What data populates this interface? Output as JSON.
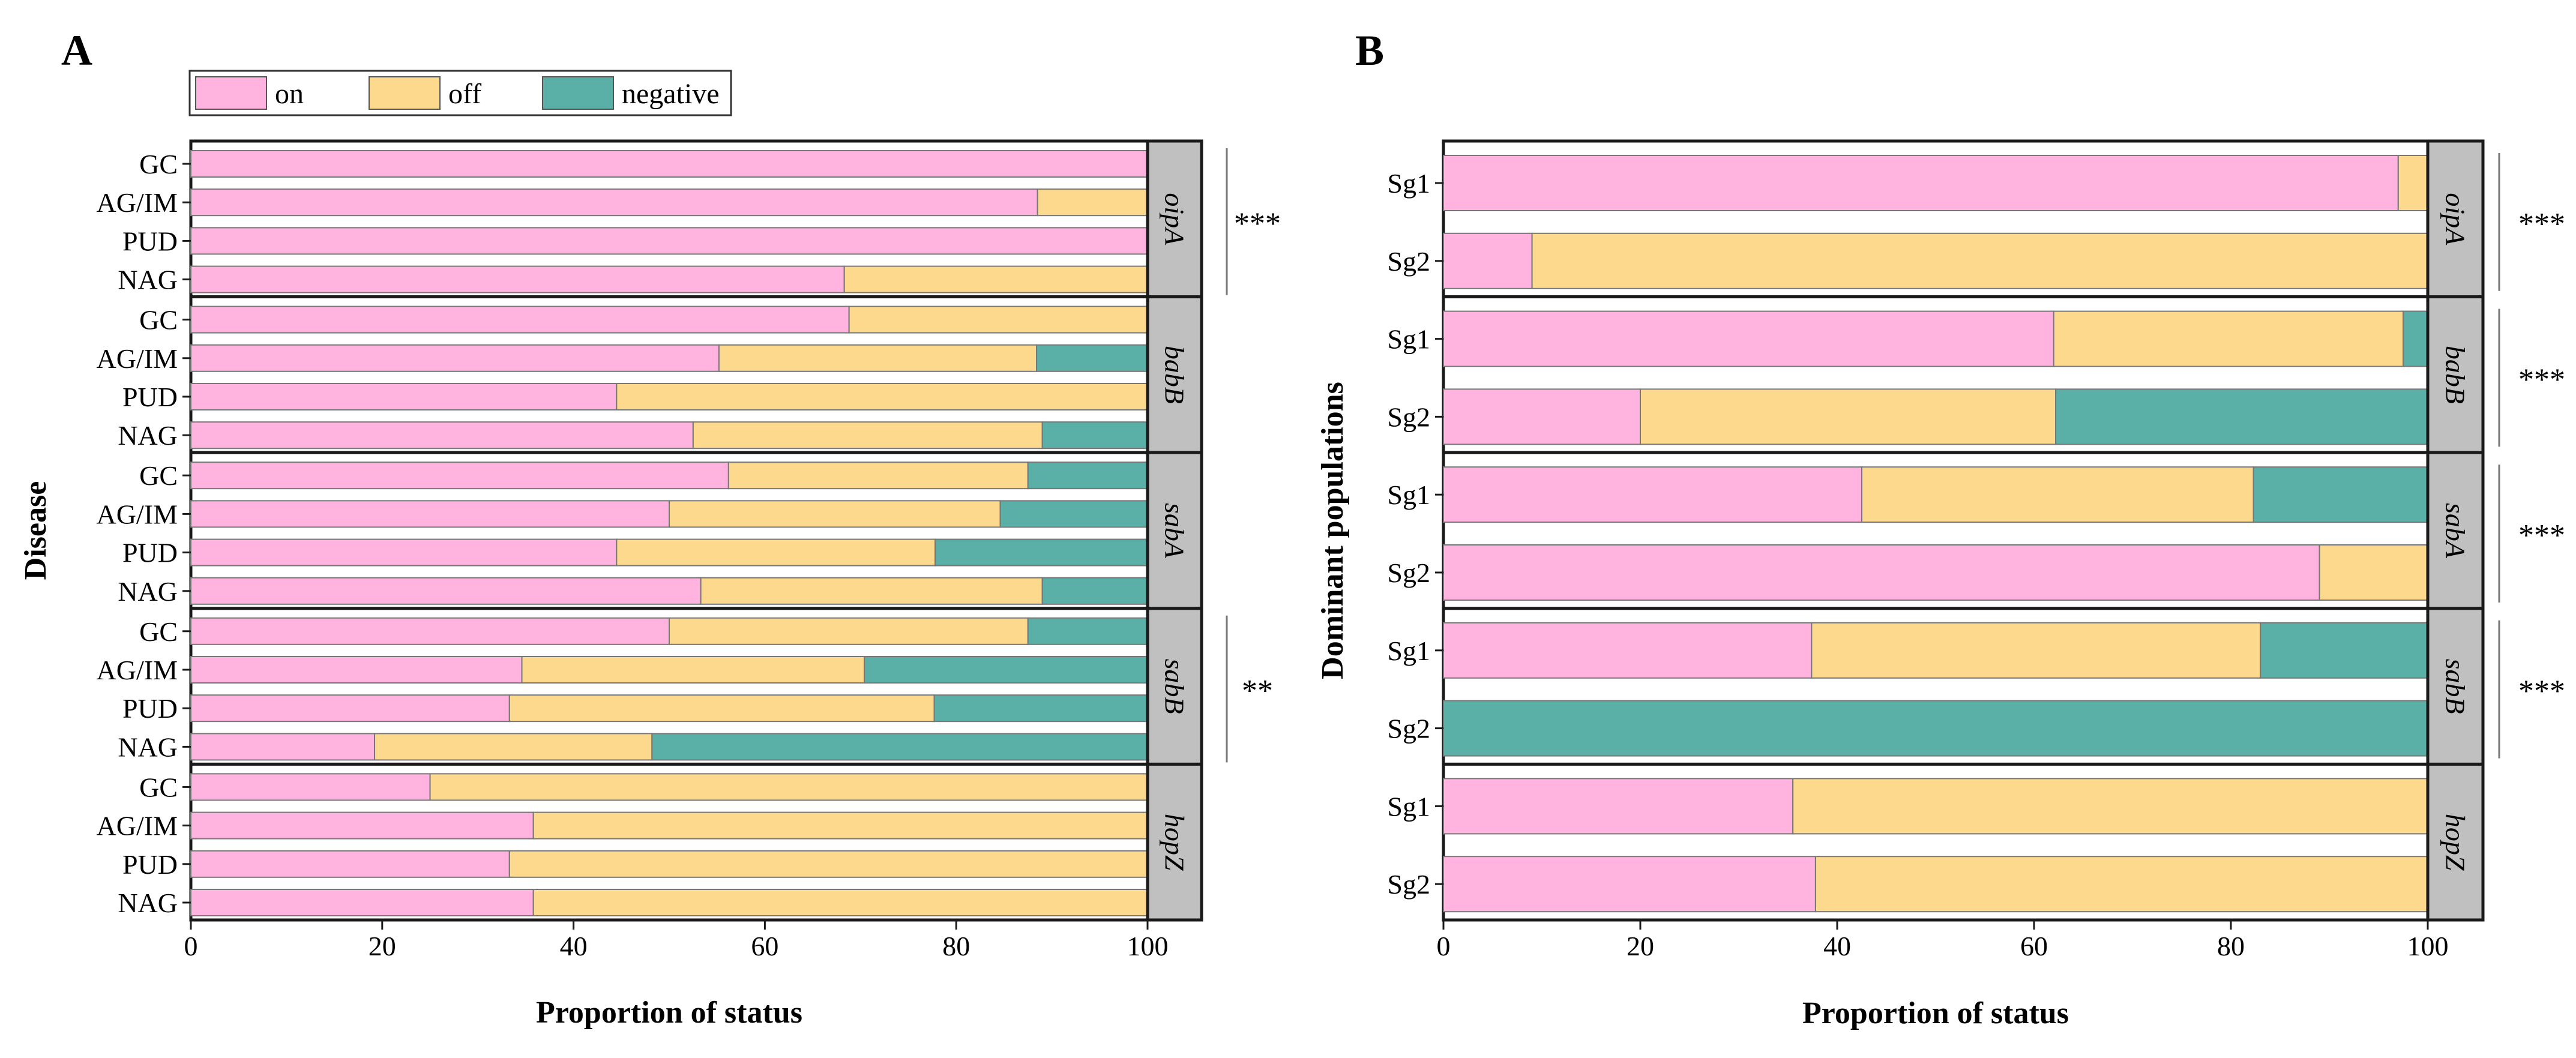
{
  "legend": [
    {
      "key": "on",
      "label": "on",
      "color": "#ffb3de"
    },
    {
      "key": "off",
      "label": "off",
      "color": "#fdd98e"
    },
    {
      "key": "negative",
      "label": "negative",
      "color": "#5ab0a6"
    }
  ],
  "strip_color": "#c0c0c0",
  "chart_data": [
    {
      "type": "bar",
      "stacked": true,
      "orientation": "horizontal",
      "panel_label": "A",
      "xlabel": "Proportion of status",
      "ylabel": "Disease",
      "xlim": [
        0,
        100
      ],
      "xticks": [
        "0",
        "20",
        "40",
        "60",
        "80",
        "100"
      ],
      "series_names": [
        "on",
        "off",
        "negative"
      ],
      "facets": [
        {
          "gene": "oipA",
          "significance": "***",
          "rows": [
            {
              "label": "GC",
              "values": [
                100,
                0,
                0
              ]
            },
            {
              "label": "AG/IM",
              "values": [
                88.5,
                11.5,
                0
              ]
            },
            {
              "label": "PUD",
              "values": [
                100,
                0,
                0
              ]
            },
            {
              "label": "NAG",
              "values": [
                68.3,
                31.7,
                0
              ]
            }
          ]
        },
        {
          "gene": "babB",
          "significance": "",
          "rows": [
            {
              "label": "GC",
              "values": [
                68.8,
                31.2,
                0
              ]
            },
            {
              "label": "AG/IM",
              "values": [
                55.2,
                33.2,
                11.6
              ]
            },
            {
              "label": "PUD",
              "values": [
                44.5,
                55.5,
                0
              ]
            },
            {
              "label": "NAG",
              "values": [
                52.5,
                36.5,
                11
              ]
            }
          ]
        },
        {
          "gene": "sabA",
          "significance": "",
          "rows": [
            {
              "label": "GC",
              "values": [
                56.2,
                31.3,
                12.5
              ]
            },
            {
              "label": "AG/IM",
              "values": [
                50,
                34.6,
                15.4
              ]
            },
            {
              "label": "PUD",
              "values": [
                44.5,
                33.3,
                22.2
              ]
            },
            {
              "label": "NAG",
              "values": [
                53.3,
                35.7,
                11
              ]
            }
          ]
        },
        {
          "gene": "sabB",
          "significance": "**",
          "rows": [
            {
              "label": "GC",
              "values": [
                50,
                37.5,
                12.5
              ]
            },
            {
              "label": "AG/IM",
              "values": [
                34.6,
                35.8,
                29.6
              ]
            },
            {
              "label": "PUD",
              "values": [
                33.3,
                44.4,
                22.3
              ]
            },
            {
              "label": "NAG",
              "values": [
                19.2,
                29,
                51.8
              ]
            }
          ]
        },
        {
          "gene": "hopZ",
          "significance": "",
          "rows": [
            {
              "label": "GC",
              "values": [
                25,
                75,
                0
              ]
            },
            {
              "label": "AG/IM",
              "values": [
                35.8,
                64.2,
                0
              ]
            },
            {
              "label": "PUD",
              "values": [
                33.3,
                66.7,
                0
              ]
            },
            {
              "label": "NAG",
              "values": [
                35.8,
                64.2,
                0
              ]
            }
          ]
        }
      ]
    },
    {
      "type": "bar",
      "stacked": true,
      "orientation": "horizontal",
      "panel_label": "B",
      "xlabel": "Proportion of status",
      "ylabel": "Dominant populations",
      "xlim": [
        0,
        100
      ],
      "xticks": [
        "0",
        "20",
        "40",
        "60",
        "80",
        "100"
      ],
      "series_names": [
        "on",
        "off",
        "negative"
      ],
      "facets": [
        {
          "gene": "oipA",
          "significance": "***",
          "rows": [
            {
              "label": "Sg1",
              "values": [
                97,
                3,
                0
              ]
            },
            {
              "label": "Sg2",
              "values": [
                9,
                91,
                0
              ]
            }
          ]
        },
        {
          "gene": "babB",
          "significance": "***",
          "rows": [
            {
              "label": "Sg1",
              "values": [
                62,
                35.5,
                2.5
              ]
            },
            {
              "label": "Sg2",
              "values": [
                20,
                42.2,
                37.8
              ]
            }
          ]
        },
        {
          "gene": "sabA",
          "significance": "***",
          "rows": [
            {
              "label": "Sg1",
              "values": [
                42.5,
                39.8,
                17.7
              ]
            },
            {
              "label": "Sg2",
              "values": [
                89,
                11,
                0
              ]
            }
          ]
        },
        {
          "gene": "sabB",
          "significance": "***",
          "rows": [
            {
              "label": "Sg1",
              "values": [
                37.4,
                45.6,
                17
              ]
            },
            {
              "label": "Sg2",
              "values": [
                0,
                0,
                100
              ]
            }
          ]
        },
        {
          "gene": "hopZ",
          "significance": "",
          "rows": [
            {
              "label": "Sg1",
              "values": [
                35.5,
                64.5,
                0
              ]
            },
            {
              "label": "Sg2",
              "values": [
                37.8,
                62.2,
                0
              ]
            }
          ]
        }
      ]
    }
  ]
}
